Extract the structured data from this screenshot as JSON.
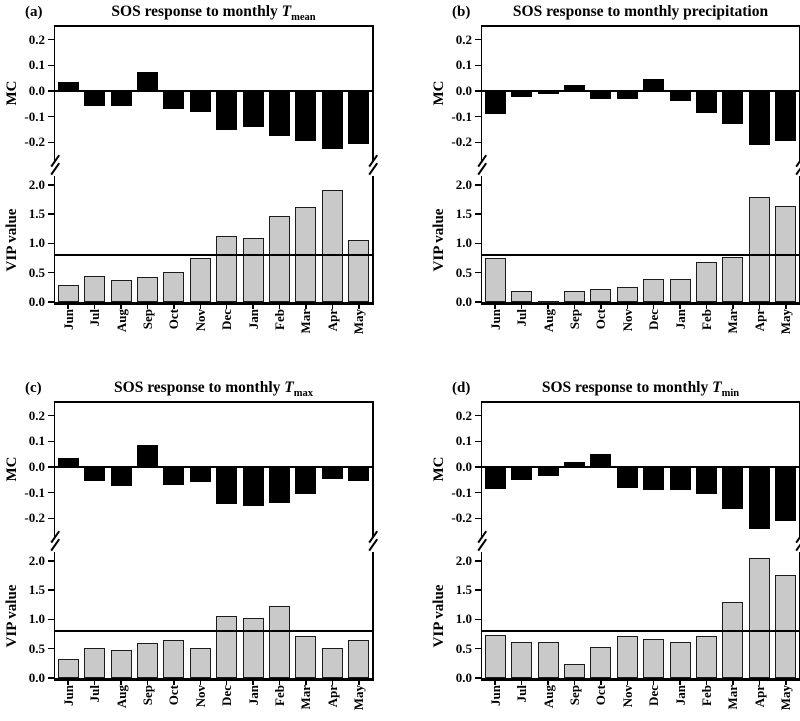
{
  "figure": {
    "months": [
      "Jun",
      "Jul",
      "Aug",
      "Sep",
      "Oct",
      "Nov",
      "Dec",
      "Jan",
      "Feb",
      "Mar",
      "Apr",
      "May"
    ],
    "mc_axis": {
      "label": "MC",
      "ticks": [
        "0.2",
        "0.1",
        "0.0",
        "-0.1",
        "-0.2"
      ]
    },
    "vip_axis": {
      "label": "VIP value",
      "ticks": [
        "2.0",
        "1.5",
        "1.0",
        "0.5",
        "0.0"
      ]
    },
    "vip_threshold": 0.8,
    "colors": {
      "mc_bar": "#000000",
      "vip_bar": "#c9c9c9",
      "axis": "#000000",
      "background": "#ffffff"
    }
  },
  "chart_data": [
    {
      "type": "bar",
      "panel_label": "(a)",
      "title_prefix": "SOS response to monthly ",
      "title_symbol": "T",
      "title_sub": "mean",
      "categories": [
        "Jun",
        "Jul",
        "Aug",
        "Sep",
        "Oct",
        "Nov",
        "Dec",
        "Jan",
        "Feb",
        "Mar",
        "Apr",
        "May"
      ],
      "series": [
        {
          "name": "MC",
          "values": [
            0.035,
            -0.06,
            -0.06,
            0.075,
            -0.07,
            -0.08,
            -0.15,
            -0.14,
            -0.175,
            -0.195,
            -0.225,
            -0.205
          ]
        },
        {
          "name": "VIP value",
          "values": [
            0.29,
            0.44,
            0.37,
            0.42,
            0.51,
            0.75,
            1.12,
            1.09,
            1.47,
            1.62,
            1.91,
            1.06
          ]
        }
      ],
      "mc_ylim": [
        -0.27,
        0.25
      ],
      "vip_ylim": [
        0,
        2.2
      ],
      "threshold": 0.8,
      "legend": "none",
      "grid": false
    },
    {
      "type": "bar",
      "panel_label": "(b)",
      "title_prefix": "SOS response to monthly precipitation",
      "title_symbol": "",
      "title_sub": "",
      "categories": [
        "Jun",
        "Jul",
        "Aug",
        "Sep",
        "Oct",
        "Nov",
        "Dec",
        "Jan",
        "Feb",
        "Mar",
        "Apr",
        "May"
      ],
      "series": [
        {
          "name": "MC",
          "values": [
            -0.09,
            -0.025,
            -0.01,
            0.025,
            -0.03,
            -0.03,
            0.045,
            -0.04,
            -0.085,
            -0.13,
            -0.21,
            -0.195
          ]
        },
        {
          "name": "VIP value",
          "values": [
            0.75,
            0.19,
            0.02,
            0.19,
            0.23,
            0.26,
            0.4,
            0.39,
            0.69,
            0.76,
            1.8,
            1.64
          ]
        }
      ],
      "mc_ylim": [
        -0.27,
        0.25
      ],
      "vip_ylim": [
        0,
        2.2
      ],
      "threshold": 0.8,
      "legend": "none",
      "grid": false
    },
    {
      "type": "bar",
      "panel_label": "(c)",
      "title_prefix": "SOS response to monthly ",
      "title_symbol": "T",
      "title_sub": "max",
      "categories": [
        "Jun",
        "Jul",
        "Aug",
        "Sep",
        "Oct",
        "Nov",
        "Dec",
        "Jan",
        "Feb",
        "Mar",
        "Apr",
        "May"
      ],
      "series": [
        {
          "name": "MC",
          "values": [
            0.035,
            -0.055,
            -0.075,
            0.085,
            -0.07,
            -0.06,
            -0.145,
            -0.15,
            -0.14,
            -0.105,
            -0.045,
            -0.055
          ]
        },
        {
          "name": "VIP value",
          "values": [
            0.32,
            0.52,
            0.48,
            0.6,
            0.64,
            0.52,
            1.06,
            1.02,
            1.23,
            0.72,
            0.51,
            0.65
          ]
        }
      ],
      "mc_ylim": [
        -0.27,
        0.25
      ],
      "vip_ylim": [
        0,
        2.2
      ],
      "threshold": 0.8,
      "legend": "none",
      "grid": false
    },
    {
      "type": "bar",
      "panel_label": "(d)",
      "title_prefix": "SOS response to monthly ",
      "title_symbol": "T",
      "title_sub": "min",
      "categories": [
        "Jun",
        "Jul",
        "Aug",
        "Sep",
        "Oct",
        "Nov",
        "Dec",
        "Jan",
        "Feb",
        "Mar",
        "Apr",
        "May"
      ],
      "series": [
        {
          "name": "MC",
          "values": [
            -0.085,
            -0.05,
            -0.035,
            0.02,
            0.05,
            -0.08,
            -0.09,
            -0.09,
            -0.105,
            -0.165,
            -0.24,
            -0.21
          ]
        },
        {
          "name": "VIP value",
          "values": [
            0.73,
            0.62,
            0.62,
            0.24,
            0.53,
            0.72,
            0.67,
            0.61,
            0.71,
            1.3,
            2.05,
            1.75
          ]
        }
      ],
      "mc_ylim": [
        -0.27,
        0.25
      ],
      "vip_ylim": [
        0,
        2.2
      ],
      "threshold": 0.8,
      "legend": "none",
      "grid": false
    }
  ]
}
